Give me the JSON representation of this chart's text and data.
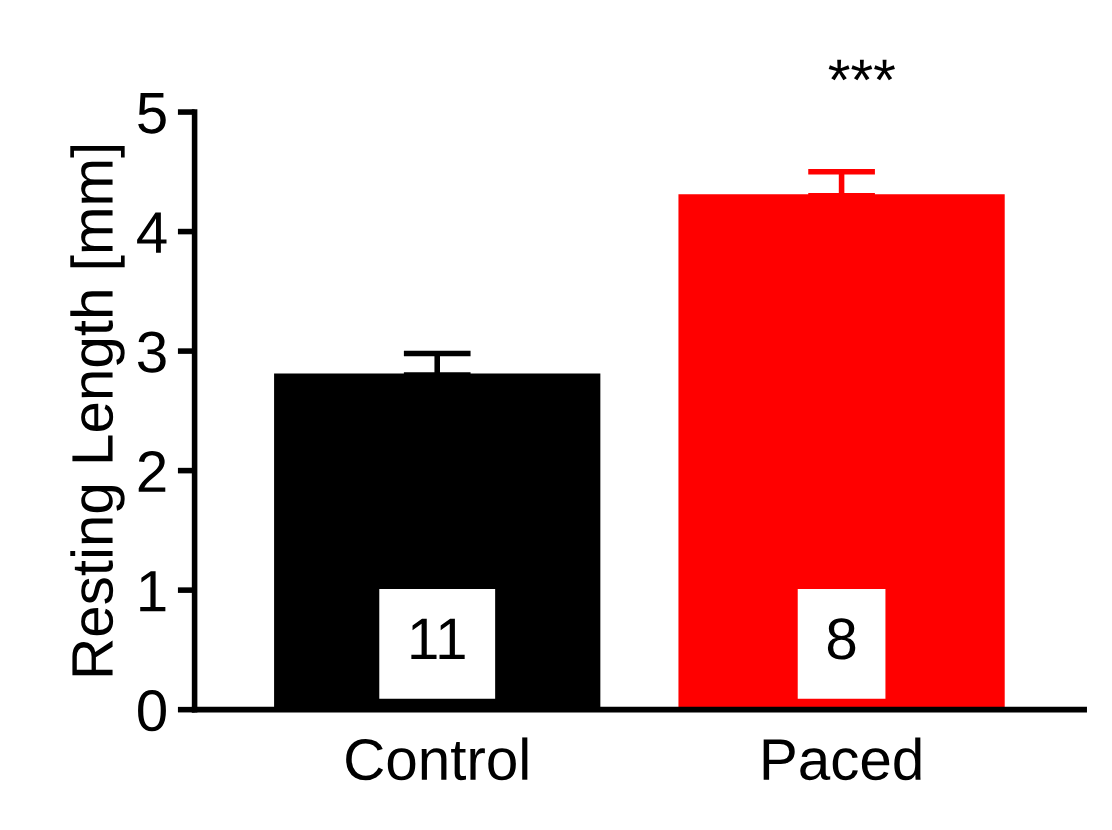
{
  "chart_data": {
    "type": "bar",
    "ylabel": "Resting Length [mm]",
    "categories": [
      "Control",
      "Paced"
    ],
    "values": [
      2.8,
      4.3
    ],
    "colors": [
      "#000000",
      "#ff0000"
    ],
    "errors": [
      [
        2.8,
        2.98
      ],
      [
        4.3,
        4.5
      ]
    ],
    "ylim": [
      0,
      5
    ],
    "yticks": [
      0,
      1,
      2,
      3,
      4,
      5
    ],
    "grid": false,
    "annotations": [
      "***",
      "11",
      "8"
    ]
  }
}
